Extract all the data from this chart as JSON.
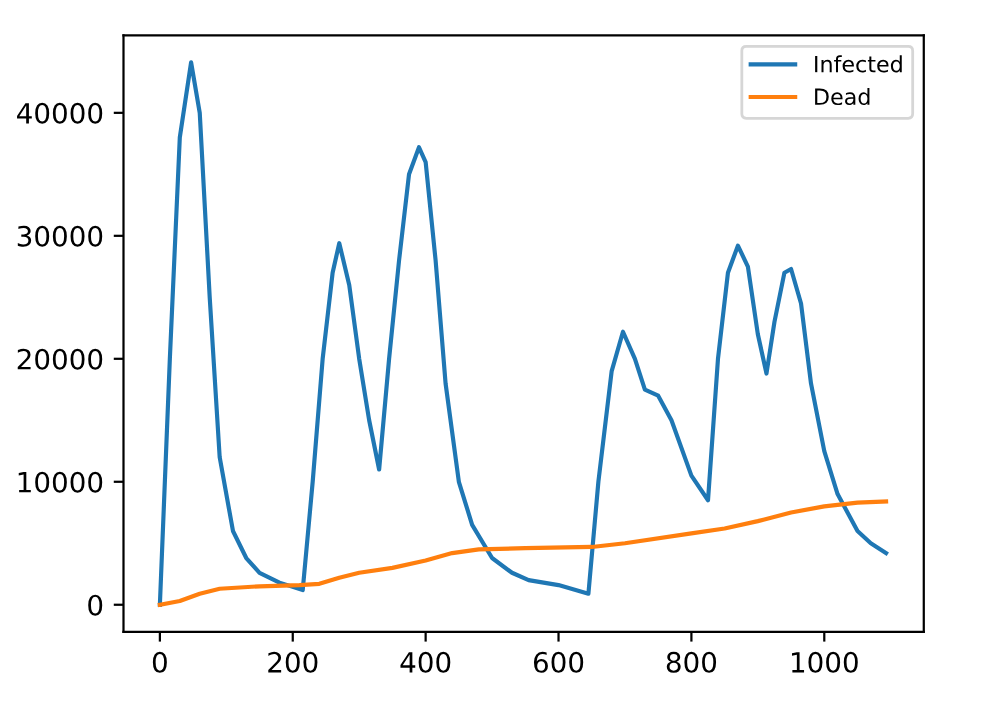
{
  "chart_data": {
    "type": "line",
    "xlim": [
      -54.75,
      1149.75
    ],
    "ylim": [
      -2205,
      46305
    ],
    "xticks": [
      0,
      200,
      400,
      600,
      800,
      1000
    ],
    "yticks": [
      0,
      10000,
      20000,
      30000,
      40000
    ],
    "legend": "top right",
    "grid": false,
    "series": [
      {
        "name": "Infected",
        "color": "#1f77b4",
        "x": [
          0,
          15,
          30,
          47,
          60,
          75,
          90,
          110,
          130,
          150,
          180,
          215,
          230,
          245,
          260,
          270,
          285,
          300,
          315,
          330,
          345,
          360,
          375,
          390,
          400,
          415,
          430,
          450,
          470,
          500,
          530,
          555,
          600,
          645,
          660,
          680,
          697,
          715,
          730,
          750,
          770,
          800,
          825,
          840,
          855,
          870,
          885,
          900,
          913,
          925,
          940,
          950,
          965,
          980,
          1000,
          1020,
          1050,
          1070,
          1093
        ],
        "values": [
          0,
          20000,
          38000,
          44100,
          40000,
          25000,
          12000,
          6000,
          3800,
          2600,
          1800,
          1200,
          10000,
          20000,
          27000,
          29400,
          26000,
          20000,
          15000,
          11000,
          20000,
          28000,
          35000,
          37200,
          36000,
          28000,
          18000,
          10000,
          6500,
          3800,
          2600,
          2000,
          1600,
          900,
          10000,
          19000,
          22200,
          20000,
          17500,
          17000,
          15000,
          10500,
          8500,
          20000,
          27000,
          29200,
          27500,
          22000,
          18800,
          23000,
          27000,
          27300,
          24500,
          18000,
          12500,
          9000,
          6000,
          5000,
          4200
        ]
      },
      {
        "name": "Dead",
        "color": "#ff7f0e",
        "x": [
          0,
          30,
          60,
          90,
          150,
          210,
          240,
          270,
          300,
          350,
          400,
          440,
          480,
          550,
          650,
          700,
          800,
          850,
          900,
          950,
          1000,
          1050,
          1093
        ],
        "values": [
          0,
          300,
          900,
          1300,
          1500,
          1600,
          1700,
          2200,
          2600,
          3000,
          3600,
          4200,
          4500,
          4600,
          4700,
          5000,
          5800,
          6200,
          6800,
          7500,
          8000,
          8300,
          8400
        ]
      }
    ]
  }
}
